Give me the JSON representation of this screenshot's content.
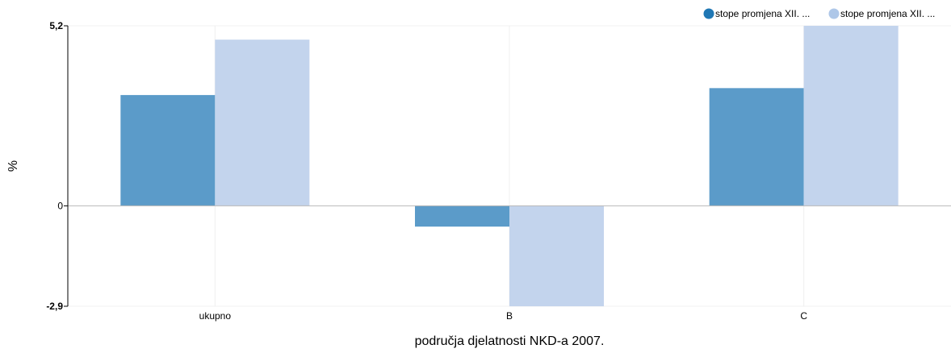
{
  "chart_data": {
    "type": "bar",
    "categories": [
      "ukupno",
      "B",
      "C"
    ],
    "series": [
      {
        "name": "stope promjena XII. ...",
        "values": [
          3.2,
          -0.6,
          3.4
        ],
        "color": "#5b9bc9"
      },
      {
        "name": "stope promjena XII. ...",
        "values": [
          4.8,
          -2.9,
          5.2
        ],
        "color": "#c3d4ed"
      }
    ],
    "legend_markers": [
      "#1f77b4",
      "#aec7e8"
    ],
    "xlabel": "područja djelatnosti NKD-a 2007.",
    "ylabel": "%",
    "ylim": [
      -2.9,
      5.2
    ],
    "yticks": [
      {
        "value": -2.9,
        "label": "-2,9"
      },
      {
        "value": 0,
        "label": "0"
      },
      {
        "value": 5.2,
        "label": "5,2"
      }
    ],
    "legend_position": "top-right",
    "grid": true
  }
}
